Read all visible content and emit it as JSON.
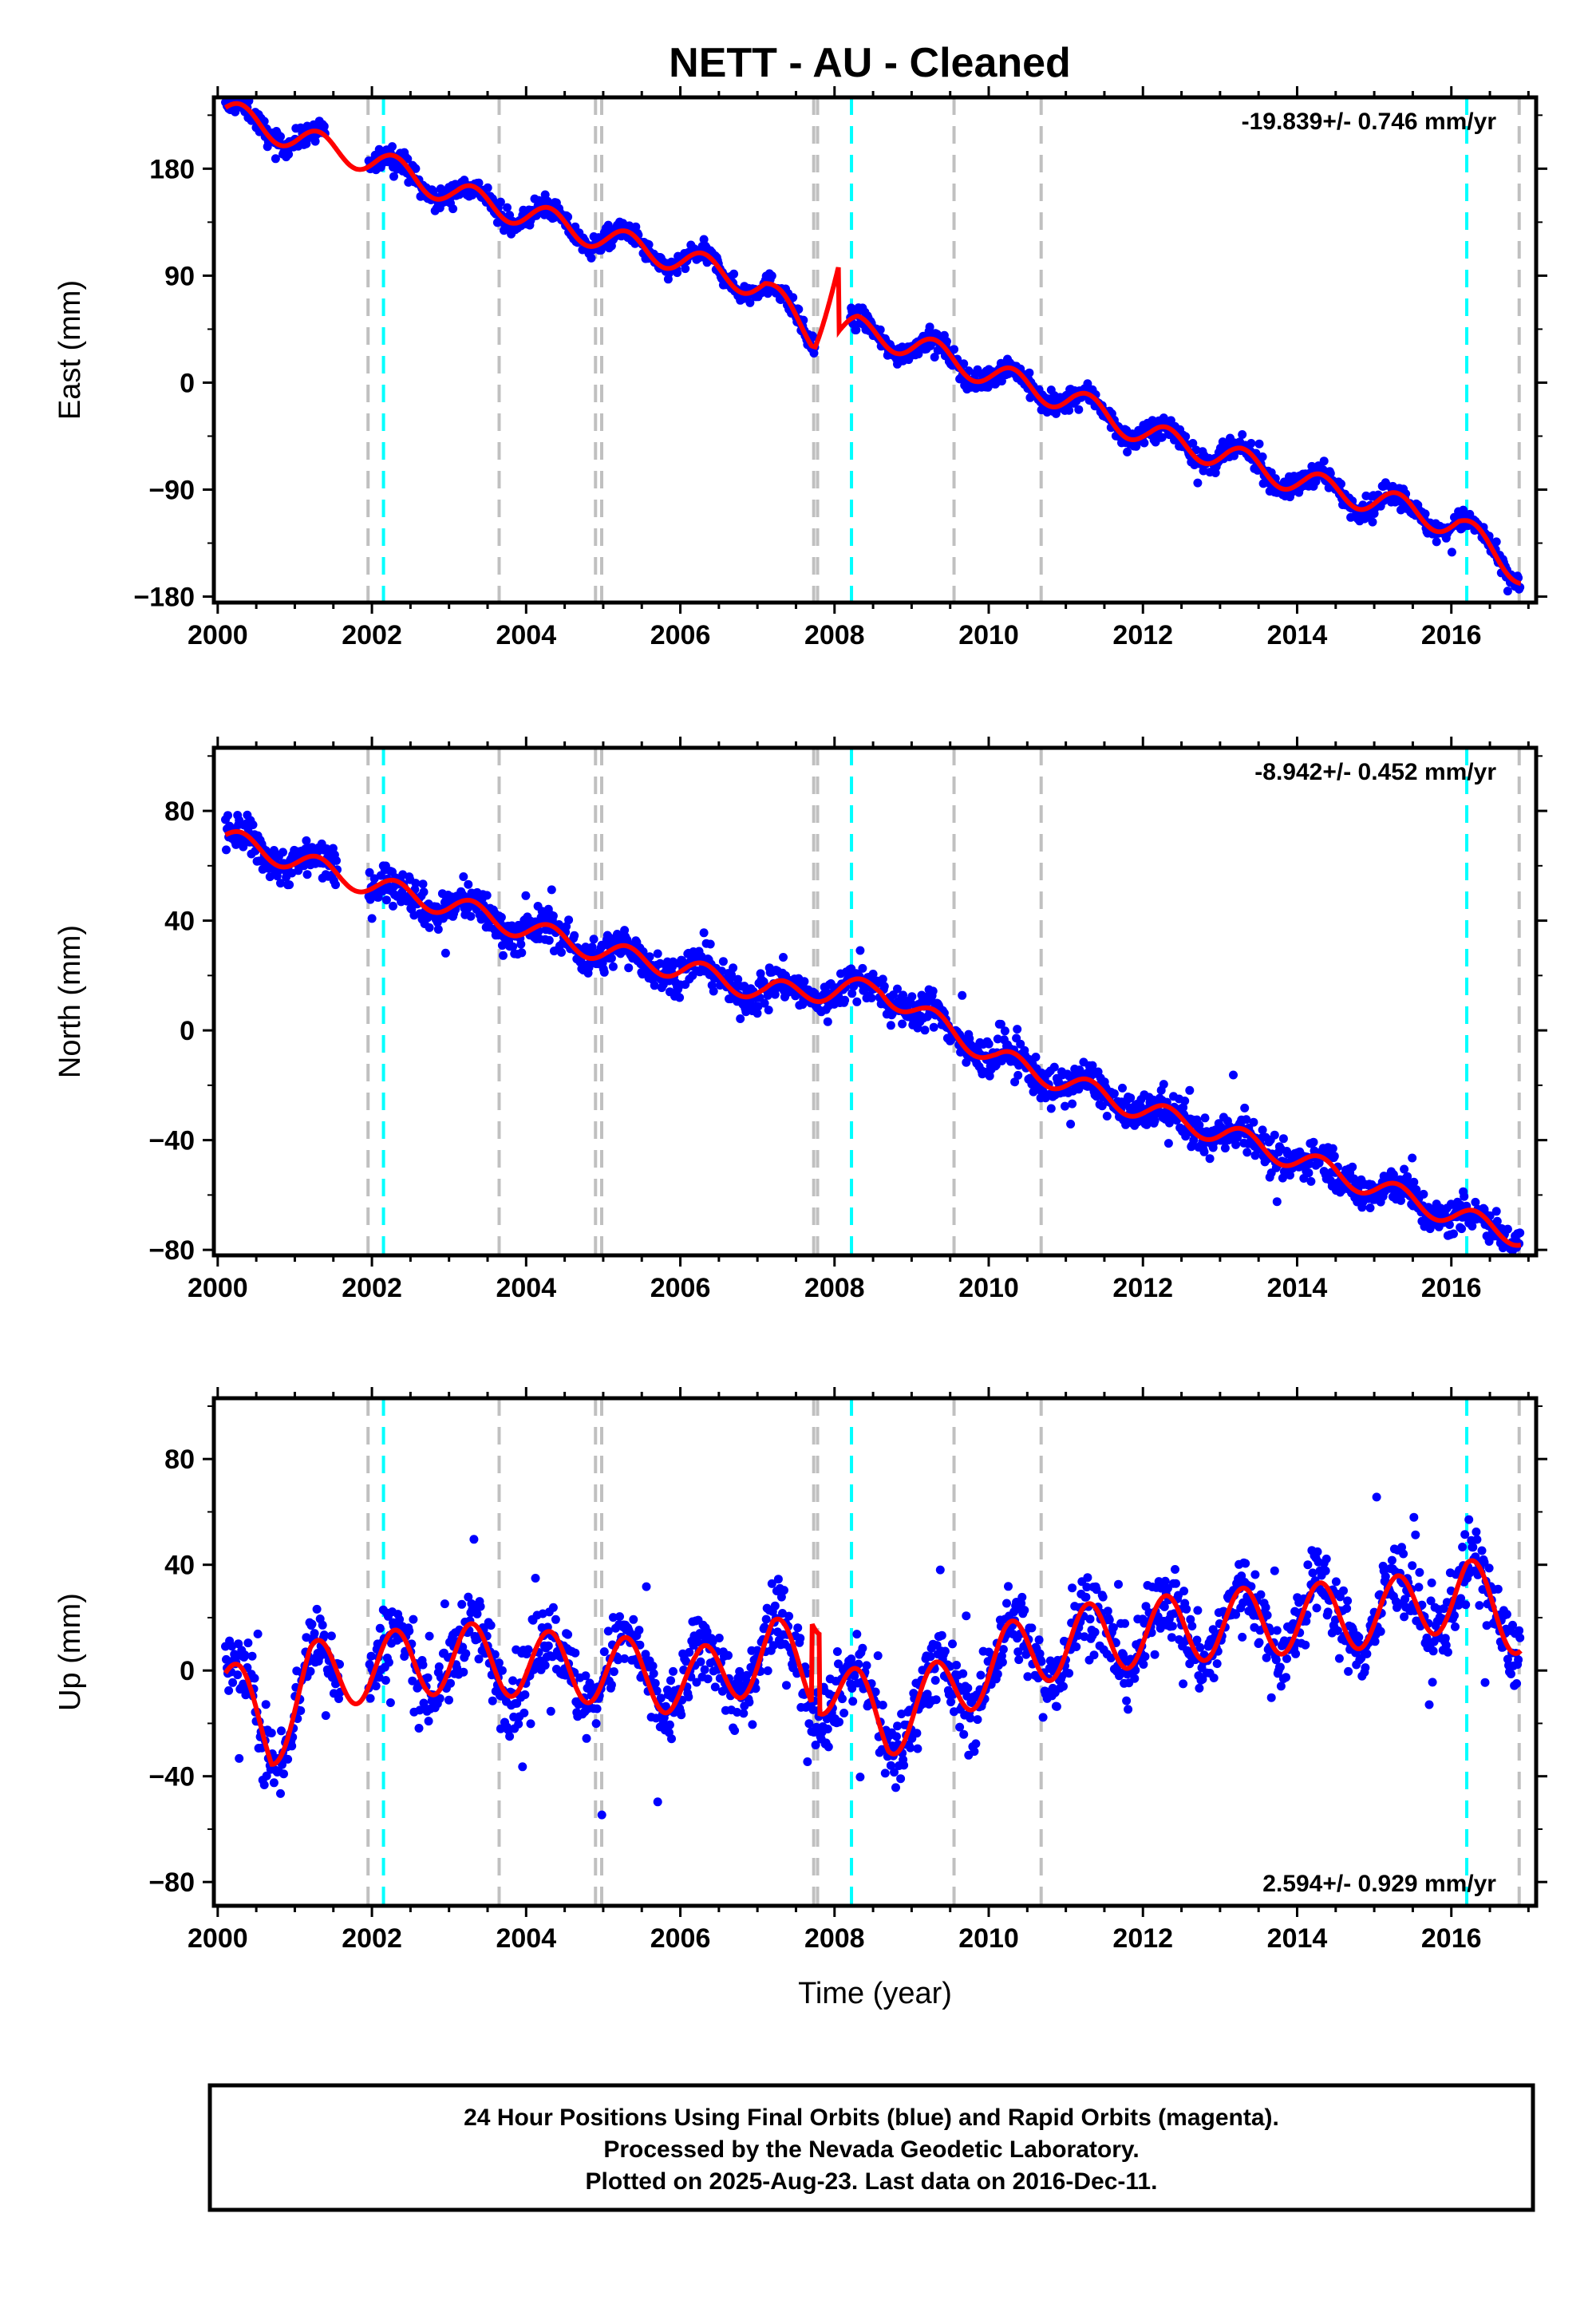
{
  "title": "NETT  - AU - Cleaned",
  "footer": {
    "lines": [
      "24 Hour Positions Using Final Orbits (blue) and Rapid Orbits (magenta).",
      "Processed by the Nevada Geodetic Laboratory.",
      "Plotted on 2025-Aug-23. Last data on 2016-Dec-11."
    ]
  },
  "colors": {
    "points": "#0000ff",
    "fit": "#ff0000",
    "event_gray": "#c0c0c0",
    "event_cyan": "#00ffff",
    "frame": "#000000"
  },
  "chart_data": [
    {
      "type": "scatter",
      "panel": "east",
      "ylabel": "East (mm)",
      "xlabel": "",
      "xlim": [
        1999.95,
        2017.1
      ],
      "ylim": [
        -185,
        240
      ],
      "xticks": [
        2000,
        2002,
        2004,
        2006,
        2008,
        2010,
        2012,
        2014,
        2016
      ],
      "yticks": [
        180,
        90,
        0,
        -90,
        -180
      ],
      "ytick_labels": [
        "180",
        "90",
        "0",
        "−90",
        "−180"
      ],
      "rate_label": "-19.839+/- 0.746 mm/yr",
      "rate_position": "top-right",
      "trend": {
        "y2000": 225,
        "rate": -19.839
      },
      "seasonal_amplitude": 11,
      "gap": [
        2001.4,
        2001.95
      ],
      "series": [
        {
          "name": "Final Orbits (blue)",
          "x": [
            2000.1,
            2001.0,
            2002.1,
            2003.1,
            2004.1,
            2005.1,
            2006.1,
            2007.1,
            2007.7,
            2008.3,
            2009.1,
            2010.1,
            2011.1,
            2012.1,
            2013.1,
            2014.1,
            2015.1,
            2016.1,
            2016.9
          ],
          "y": [
            228,
            206,
            185,
            158,
            140,
            120,
            102,
            80,
            40,
            45,
            30,
            5,
            -15,
            -45,
            -62,
            -85,
            -100,
            -120,
            -160
          ]
        }
      ],
      "step_offsets": [
        {
          "x": 2008.05,
          "dy": -55
        }
      ],
      "gray_lines": [
        2001.95,
        2003.65,
        2004.9,
        2004.98,
        2007.73,
        2007.78,
        2009.55,
        2010.68,
        2016.88
      ],
      "cyan_lines": [
        2002.15,
        2008.22,
        2016.2
      ]
    },
    {
      "type": "scatter",
      "panel": "north",
      "ylabel": "North (mm)",
      "xlabel": "",
      "xlim": [
        1999.95,
        2017.1
      ],
      "ylim": [
        -82,
        103
      ],
      "xticks": [
        2000,
        2002,
        2004,
        2006,
        2008,
        2010,
        2012,
        2014,
        2016
      ],
      "yticks": [
        80,
        40,
        0,
        -40,
        -80
      ],
      "ytick_labels": [
        "80",
        "40",
        "0",
        "−40",
        "−80"
      ],
      "rate_label": "-8.942+/- 0.452 mm/yr",
      "rate_position": "top-right",
      "trend": {
        "y2000": 72,
        "rate": -8.942
      },
      "seasonal_amplitude": 4,
      "gap": [
        2001.55,
        2001.95
      ],
      "series": [
        {
          "name": "Final Orbits (blue)",
          "x": [
            2000.1,
            2001.0,
            2002.1,
            2003.1,
            2004.1,
            2005.1,
            2006.1,
            2007.1,
            2008.6,
            2010.1,
            2011.1,
            2012.1,
            2013.1,
            2014.1,
            2015.1,
            2016.1,
            2016.9
          ],
          "y": [
            70,
            62,
            52,
            45,
            36,
            28,
            22,
            14,
            15,
            -10,
            -20,
            -30,
            -38,
            -48,
            -58,
            -68,
            -75
          ]
        }
      ],
      "step_offsets": [],
      "gray_lines": [
        2001.95,
        2003.65,
        2004.9,
        2004.98,
        2007.73,
        2007.78,
        2009.55,
        2010.68,
        2016.88
      ],
      "cyan_lines": [
        2002.15,
        2008.22,
        2016.2
      ]
    },
    {
      "type": "scatter",
      "panel": "up",
      "ylabel": "Up (mm)",
      "xlabel": "Time (year)",
      "xlim": [
        1999.95,
        2017.1
      ],
      "ylim": [
        -89,
        103
      ],
      "xticks": [
        2000,
        2002,
        2004,
        2006,
        2008,
        2010,
        2012,
        2014,
        2016
      ],
      "yticks": [
        80,
        40,
        0,
        -40,
        -80
      ],
      "ytick_labels": [
        "80",
        "40",
        "0",
        "−40",
        "−80"
      ],
      "rate_label": "2.594+/- 0.929 mm/yr",
      "rate_position": "bottom-right",
      "trend": {
        "y2000": -10,
        "rate": 2.594
      },
      "seasonal_amplitude": 13,
      "gap": [
        2001.6,
        2001.95
      ],
      "series": [
        {
          "name": "Final Orbits (blue)",
          "x": [
            2000.1,
            2000.7,
            2001.2,
            2002.2,
            2003.2,
            2004.2,
            2005.2,
            2006.2,
            2007.2,
            2008.7,
            2010.2,
            2011.2,
            2012.2,
            2013.2,
            2014.2,
            2015.2,
            2016.2,
            2016.9
          ],
          "y": [
            -5,
            -25,
            -2,
            2,
            5,
            2,
            0,
            -5,
            8,
            -20,
            5,
            12,
            15,
            18,
            20,
            22,
            30,
            18
          ]
        }
      ],
      "step_offsets": [],
      "gray_lines": [
        2001.95,
        2003.65,
        2004.9,
        2004.98,
        2007.73,
        2007.78,
        2009.55,
        2010.68,
        2016.88
      ],
      "cyan_lines": [
        2002.15,
        2008.22,
        2016.2
      ]
    }
  ]
}
